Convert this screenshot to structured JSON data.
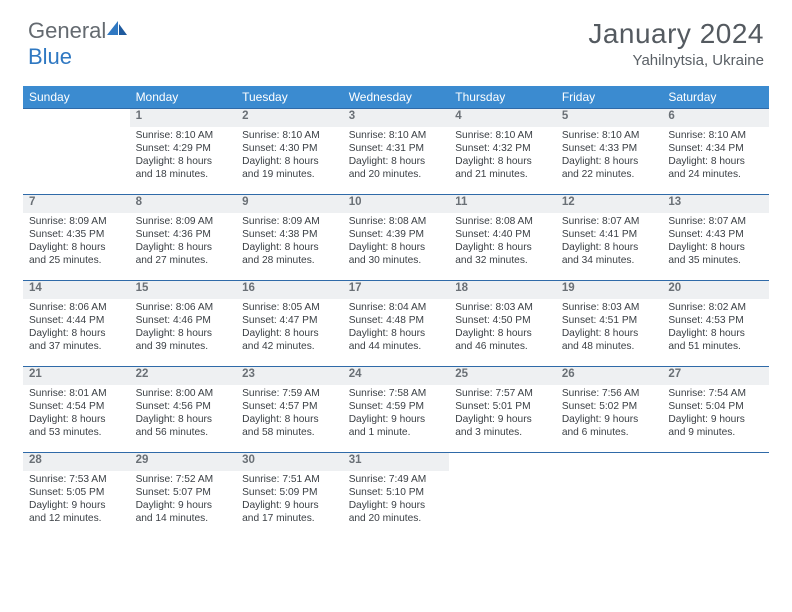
{
  "logo": {
    "word1": "General",
    "word2": "Blue"
  },
  "title": "January 2024",
  "subtitle": "Yahilnytsia, Ukraine",
  "colors": {
    "header_bg": "#3b8bd0",
    "header_text": "#ffffff",
    "daynum_bg": "#eef0f2",
    "border": "#2f6aa8",
    "logo_gray": "#646a70",
    "logo_blue": "#2f78c2"
  },
  "day_names": [
    "Sunday",
    "Monday",
    "Tuesday",
    "Wednesday",
    "Thursday",
    "Friday",
    "Saturday"
  ],
  "weeks": [
    {
      "nums": [
        "",
        "1",
        "2",
        "3",
        "4",
        "5",
        "6"
      ],
      "cells": [
        null,
        {
          "sunrise": "Sunrise: 8:10 AM",
          "sunset": "Sunset: 4:29 PM",
          "day": "Daylight: 8 hours and 18 minutes."
        },
        {
          "sunrise": "Sunrise: 8:10 AM",
          "sunset": "Sunset: 4:30 PM",
          "day": "Daylight: 8 hours and 19 minutes."
        },
        {
          "sunrise": "Sunrise: 8:10 AM",
          "sunset": "Sunset: 4:31 PM",
          "day": "Daylight: 8 hours and 20 minutes."
        },
        {
          "sunrise": "Sunrise: 8:10 AM",
          "sunset": "Sunset: 4:32 PM",
          "day": "Daylight: 8 hours and 21 minutes."
        },
        {
          "sunrise": "Sunrise: 8:10 AM",
          "sunset": "Sunset: 4:33 PM",
          "day": "Daylight: 8 hours and 22 minutes."
        },
        {
          "sunrise": "Sunrise: 8:10 AM",
          "sunset": "Sunset: 4:34 PM",
          "day": "Daylight: 8 hours and 24 minutes."
        }
      ]
    },
    {
      "nums": [
        "7",
        "8",
        "9",
        "10",
        "11",
        "12",
        "13"
      ],
      "cells": [
        {
          "sunrise": "Sunrise: 8:09 AM",
          "sunset": "Sunset: 4:35 PM",
          "day": "Daylight: 8 hours and 25 minutes."
        },
        {
          "sunrise": "Sunrise: 8:09 AM",
          "sunset": "Sunset: 4:36 PM",
          "day": "Daylight: 8 hours and 27 minutes."
        },
        {
          "sunrise": "Sunrise: 8:09 AM",
          "sunset": "Sunset: 4:38 PM",
          "day": "Daylight: 8 hours and 28 minutes."
        },
        {
          "sunrise": "Sunrise: 8:08 AM",
          "sunset": "Sunset: 4:39 PM",
          "day": "Daylight: 8 hours and 30 minutes."
        },
        {
          "sunrise": "Sunrise: 8:08 AM",
          "sunset": "Sunset: 4:40 PM",
          "day": "Daylight: 8 hours and 32 minutes."
        },
        {
          "sunrise": "Sunrise: 8:07 AM",
          "sunset": "Sunset: 4:41 PM",
          "day": "Daylight: 8 hours and 34 minutes."
        },
        {
          "sunrise": "Sunrise: 8:07 AM",
          "sunset": "Sunset: 4:43 PM",
          "day": "Daylight: 8 hours and 35 minutes."
        }
      ]
    },
    {
      "nums": [
        "14",
        "15",
        "16",
        "17",
        "18",
        "19",
        "20"
      ],
      "cells": [
        {
          "sunrise": "Sunrise: 8:06 AM",
          "sunset": "Sunset: 4:44 PM",
          "day": "Daylight: 8 hours and 37 minutes."
        },
        {
          "sunrise": "Sunrise: 8:06 AM",
          "sunset": "Sunset: 4:46 PM",
          "day": "Daylight: 8 hours and 39 minutes."
        },
        {
          "sunrise": "Sunrise: 8:05 AM",
          "sunset": "Sunset: 4:47 PM",
          "day": "Daylight: 8 hours and 42 minutes."
        },
        {
          "sunrise": "Sunrise: 8:04 AM",
          "sunset": "Sunset: 4:48 PM",
          "day": "Daylight: 8 hours and 44 minutes."
        },
        {
          "sunrise": "Sunrise: 8:03 AM",
          "sunset": "Sunset: 4:50 PM",
          "day": "Daylight: 8 hours and 46 minutes."
        },
        {
          "sunrise": "Sunrise: 8:03 AM",
          "sunset": "Sunset: 4:51 PM",
          "day": "Daylight: 8 hours and 48 minutes."
        },
        {
          "sunrise": "Sunrise: 8:02 AM",
          "sunset": "Sunset: 4:53 PM",
          "day": "Daylight: 8 hours and 51 minutes."
        }
      ]
    },
    {
      "nums": [
        "21",
        "22",
        "23",
        "24",
        "25",
        "26",
        "27"
      ],
      "cells": [
        {
          "sunrise": "Sunrise: 8:01 AM",
          "sunset": "Sunset: 4:54 PM",
          "day": "Daylight: 8 hours and 53 minutes."
        },
        {
          "sunrise": "Sunrise: 8:00 AM",
          "sunset": "Sunset: 4:56 PM",
          "day": "Daylight: 8 hours and 56 minutes."
        },
        {
          "sunrise": "Sunrise: 7:59 AM",
          "sunset": "Sunset: 4:57 PM",
          "day": "Daylight: 8 hours and 58 minutes."
        },
        {
          "sunrise": "Sunrise: 7:58 AM",
          "sunset": "Sunset: 4:59 PM",
          "day": "Daylight: 9 hours and 1 minute."
        },
        {
          "sunrise": "Sunrise: 7:57 AM",
          "sunset": "Sunset: 5:01 PM",
          "day": "Daylight: 9 hours and 3 minutes."
        },
        {
          "sunrise": "Sunrise: 7:56 AM",
          "sunset": "Sunset: 5:02 PM",
          "day": "Daylight: 9 hours and 6 minutes."
        },
        {
          "sunrise": "Sunrise: 7:54 AM",
          "sunset": "Sunset: 5:04 PM",
          "day": "Daylight: 9 hours and 9 minutes."
        }
      ]
    },
    {
      "nums": [
        "28",
        "29",
        "30",
        "31",
        "",
        "",
        ""
      ],
      "cells": [
        {
          "sunrise": "Sunrise: 7:53 AM",
          "sunset": "Sunset: 5:05 PM",
          "day": "Daylight: 9 hours and 12 minutes."
        },
        {
          "sunrise": "Sunrise: 7:52 AM",
          "sunset": "Sunset: 5:07 PM",
          "day": "Daylight: 9 hours and 14 minutes."
        },
        {
          "sunrise": "Sunrise: 7:51 AM",
          "sunset": "Sunset: 5:09 PM",
          "day": "Daylight: 9 hours and 17 minutes."
        },
        {
          "sunrise": "Sunrise: 7:49 AM",
          "sunset": "Sunset: 5:10 PM",
          "day": "Daylight: 9 hours and 20 minutes."
        },
        null,
        null,
        null
      ]
    }
  ]
}
